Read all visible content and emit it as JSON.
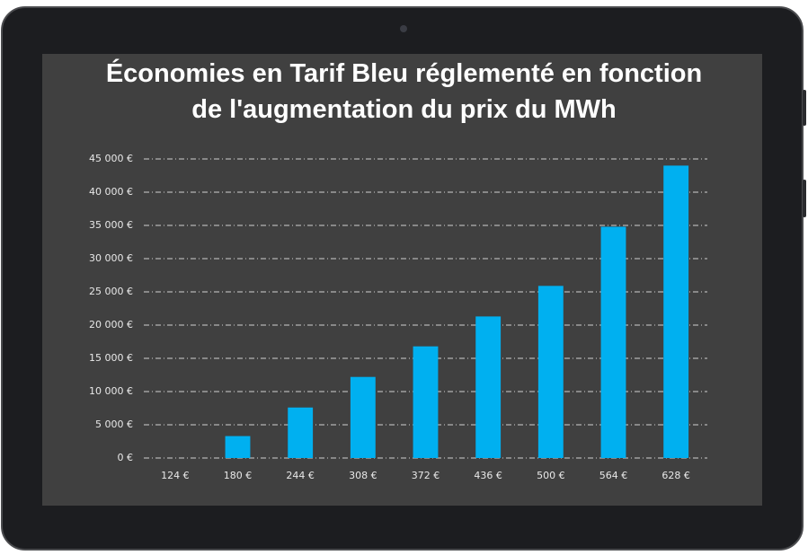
{
  "chart_data": {
    "type": "bar",
    "title": "Économies en Tarif Bleu réglementé en fonction de l'augmentation du prix du MWh",
    "categories": [
      "124 €",
      "180 €",
      "244 €",
      "308 €",
      "372 €",
      "436 €",
      "500 €",
      "564 €",
      "628 €"
    ],
    "values": [
      0,
      3300,
      7600,
      12200,
      16800,
      21300,
      25900,
      34800,
      44000
    ],
    "color": "#00b0f0",
    "ylim": [
      0,
      45000
    ],
    "yticks": [
      {
        "value": 0,
        "label": "0 €"
      },
      {
        "value": 5000,
        "label": "5 000 €"
      },
      {
        "value": 10000,
        "label": "10 000 €"
      },
      {
        "value": 15000,
        "label": "15 000 €"
      },
      {
        "value": 20000,
        "label": "20 000 €"
      },
      {
        "value": 25000,
        "label": "25 000 €"
      },
      {
        "value": 30000,
        "label": "30 000 €"
      },
      {
        "value": 35000,
        "label": "35 000 €"
      },
      {
        "value": 40000,
        "label": "40 000 €"
      },
      {
        "value": 45000,
        "label": "45 000 €"
      }
    ],
    "grid": true
  }
}
